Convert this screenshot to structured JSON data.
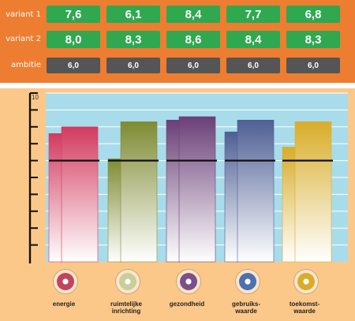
{
  "table": {
    "rows": [
      {
        "label": "variant 1",
        "values": [
          "7,6",
          "6,1",
          "8,4",
          "7,7",
          "6,8"
        ]
      },
      {
        "label": "variant 2",
        "values": [
          "8,0",
          "8,3",
          "8,6",
          "8,4",
          "8,3"
        ]
      },
      {
        "label": "ambitie",
        "values": [
          "6,0",
          "6,0",
          "6,0",
          "6,0",
          "6,0"
        ]
      }
    ]
  },
  "chart_data": {
    "type": "bar",
    "categories": [
      "energie",
      "ruimtelijke\ninrichting",
      "gezondheid",
      "gebruiks-\nwaarde",
      "toekomst-\nwaarde"
    ],
    "series": [
      {
        "name": "variant 1",
        "values": [
          7.6,
          6.1,
          8.4,
          7.7,
          6.8
        ]
      },
      {
        "name": "variant 2",
        "values": [
          8.0,
          8.3,
          8.6,
          8.4,
          8.3
        ]
      }
    ],
    "reference_line": {
      "name": "ambitie",
      "value": 6.0
    },
    "ylim": [
      0,
      10
    ],
    "y_tick_labels": [
      "10"
    ],
    "colors": [
      "#d23b5f",
      "#7f8b33",
      "#6a3f77",
      "#4e5f94",
      "#d9ad2a"
    ],
    "plot_background": "#a9dcea",
    "grid": true
  },
  "icons": [
    {
      "name": "energy-icon",
      "color": "#c0455f"
    },
    {
      "name": "spatial-planning-icon",
      "color": "#c7cf9a"
    },
    {
      "name": "health-icon",
      "color": "#7b4f8a"
    },
    {
      "name": "utility-value-icon",
      "color": "#4e6fb0"
    },
    {
      "name": "future-value-icon",
      "color": "#d8ad2a"
    }
  ]
}
